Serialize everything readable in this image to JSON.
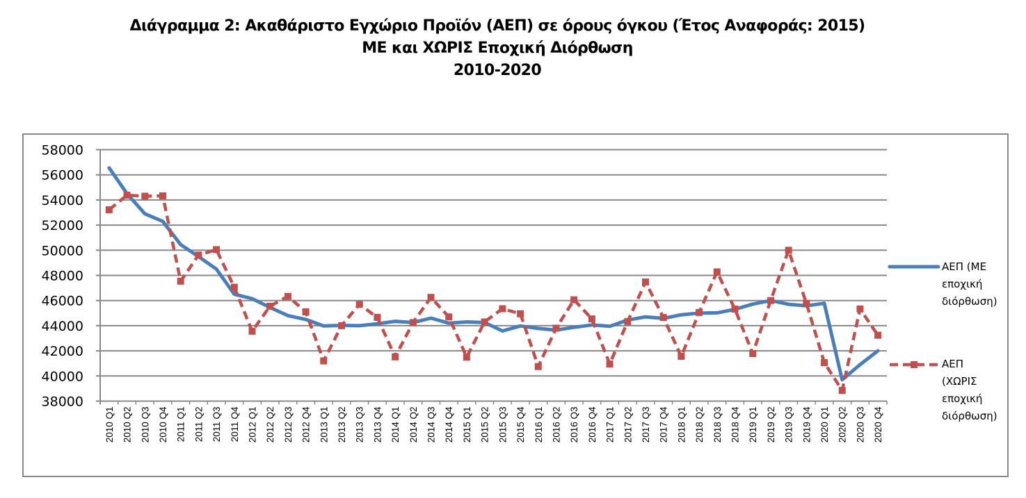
{
  "title": {
    "line1": "Διάγραμμα 2: Ακαθάριστο Εγχώριο Προϊόν (ΑΕΠ) σε όρους όγκου (Έτος Αναφοράς: 2015)",
    "line2": "ΜΕ και ΧΩΡΙΣ Εποχική Διόρθωση",
    "line3": "2010-2020"
  },
  "legend": {
    "series1": [
      "ΑΕΠ (ΜΕ",
      "εποχική",
      "διόρθωση)"
    ],
    "series2": [
      "ΑΕΠ",
      "(ΧΩΡΙΣ",
      "εποχική",
      "διόρθωση)"
    ]
  },
  "colors": {
    "series1": "#4a7ebb",
    "series2": "#c0504d",
    "grid": "#888888"
  },
  "chart_data": {
    "type": "line",
    "title": "Διάγραμμα 2: Ακαθάριστο Εγχώριο Προϊόν (ΑΕΠ) σε όρους όγκου (Έτος Αναφοράς: 2015) ΜΕ και ΧΩΡΙΣ Εποχική Διόρθωση 2010-2020",
    "xlabel": "",
    "ylabel": "",
    "ylim": [
      38000,
      58000
    ],
    "yticks": [
      38000,
      40000,
      42000,
      44000,
      46000,
      48000,
      50000,
      52000,
      54000,
      56000,
      58000
    ],
    "grid": true,
    "legend_position": "right",
    "categories": [
      "2010 Q1",
      "2010 Q2",
      "2010 Q3",
      "2010 Q4",
      "2011 Q1",
      "2011 Q2",
      "2011 Q3",
      "2011 Q4",
      "2012 Q1",
      "2012 Q2",
      "2012 Q3",
      "2012 Q4",
      "2013 Q1",
      "2013 Q2",
      "2013 Q3",
      "2013 Q4",
      "2014 Q1",
      "2014 Q2",
      "2014 Q3",
      "2014 Q4",
      "2015 Q1",
      "2015 Q2",
      "2015 Q3",
      "2015 Q4",
      "2016 Q1",
      "2016 Q2",
      "2016 Q3",
      "2016 Q4",
      "2017 Q1",
      "2017 Q2",
      "2017 Q3",
      "2017 Q4",
      "2018 Q1",
      "2018 Q2",
      "2018 Q3",
      "2018 Q4",
      "2019 Q1",
      "2019 Q2",
      "2019 Q3",
      "2019 Q4",
      "2020 Q1",
      "2020 Q2",
      "2020 Q3",
      "2020 Q4"
    ],
    "series": [
      {
        "name": "ΑΕΠ (ΜΕ εποχική διόρθωση)",
        "style": "solid",
        "color": "#4a7ebb",
        "values": [
          56550,
          54500,
          52900,
          52300,
          50450,
          49500,
          48500,
          46500,
          46150,
          45450,
          44800,
          44500,
          43980,
          44020,
          44000,
          44150,
          44350,
          44250,
          44600,
          44200,
          44300,
          44250,
          43580,
          43980,
          43780,
          43650,
          43870,
          44060,
          43950,
          44450,
          44700,
          44580,
          44870,
          45000,
          45020,
          45300,
          45720,
          46000,
          45700,
          45580,
          45780,
          39700,
          40900,
          42000
        ]
      },
      {
        "name": "ΑΕΠ (ΧΩΡΙΣ εποχική διόρθωση)",
        "style": "dashed-square-markers",
        "color": "#c0504d",
        "values": [
          53220,
          54380,
          54300,
          54330,
          47540,
          49620,
          50050,
          47060,
          43560,
          45550,
          46330,
          45100,
          41200,
          44000,
          45700,
          44660,
          41520,
          44250,
          46250,
          44700,
          41500,
          44300,
          45350,
          44950,
          40750,
          43800,
          46060,
          44540,
          40950,
          44330,
          47480,
          44650,
          41560,
          45050,
          48280,
          45320,
          41780,
          46000,
          50000,
          45780,
          41060,
          38850,
          45330,
          43240
        ]
      }
    ]
  }
}
